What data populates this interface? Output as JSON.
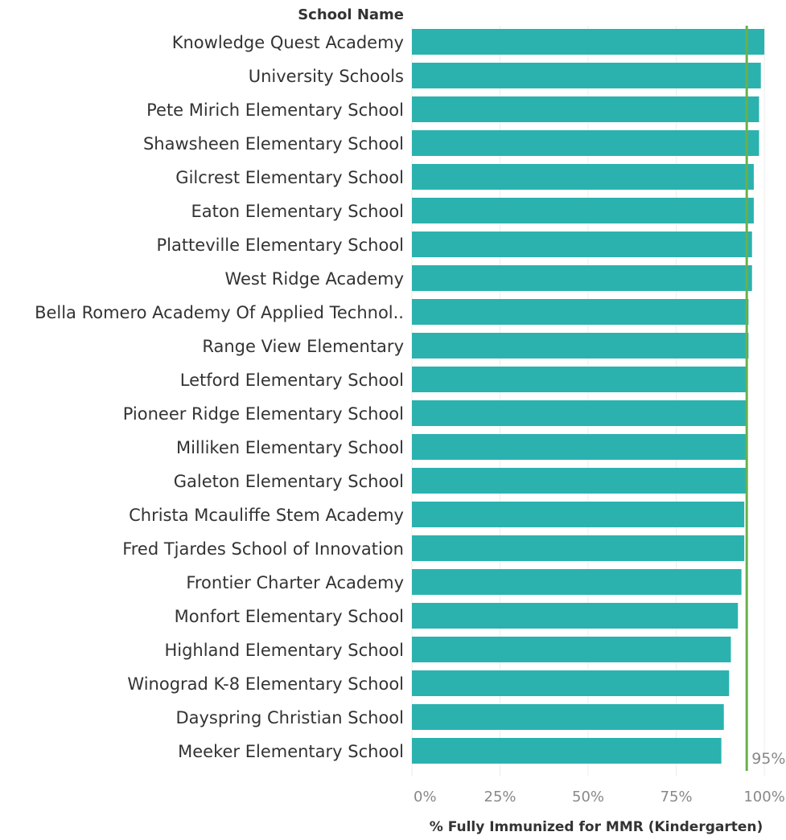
{
  "chart_data": {
    "type": "bar",
    "orientation": "horizontal",
    "row_header": "School Name",
    "xlabel": "% Fully Immunized for MMR (Kindergarten)",
    "xlim": [
      0,
      1.05
    ],
    "x_ticks": [
      "0%",
      "25%",
      "50%",
      "75%",
      "100%"
    ],
    "x_tick_values": [
      0,
      0.25,
      0.5,
      0.75,
      1.0
    ],
    "grid": "vertical",
    "reference_line": {
      "value": 0.95,
      "label": "95%"
    },
    "categories": [
      "Knowledge Quest Academy",
      "University Schools",
      "Pete Mirich Elementary School",
      "Shawsheen Elementary School",
      "Gilcrest Elementary School",
      "Eaton Elementary School",
      "Platteville Elementary School",
      "West Ridge Academy",
      "Bella Romero Academy Of Applied Technol..",
      "Range View Elementary",
      "Letford Elementary School",
      "Pioneer Ridge Elementary School",
      "Milliken Elementary School",
      "Galeton Elementary School",
      "Christa Mcauliffe Stem Academy",
      "Fred Tjardes School of Innovation",
      "Frontier Charter Academy",
      "Monfort Elementary School",
      "Highland Elementary School",
      "Winograd K-8 Elementary School",
      "Dayspring Christian School",
      "Meeker Elementary School"
    ],
    "values": [
      1.0,
      0.99,
      0.985,
      0.985,
      0.97,
      0.97,
      0.965,
      0.965,
      0.955,
      0.955,
      0.952,
      0.952,
      0.952,
      0.952,
      0.943,
      0.943,
      0.935,
      0.925,
      0.905,
      0.9,
      0.885,
      0.878
    ]
  },
  "colors": {
    "bar": "#2bb2af",
    "reference_line": "#6ab04c",
    "gridline": "#eeeeee",
    "axis_text": "#888888",
    "label_text": "#333333",
    "header_text": "#333333"
  }
}
